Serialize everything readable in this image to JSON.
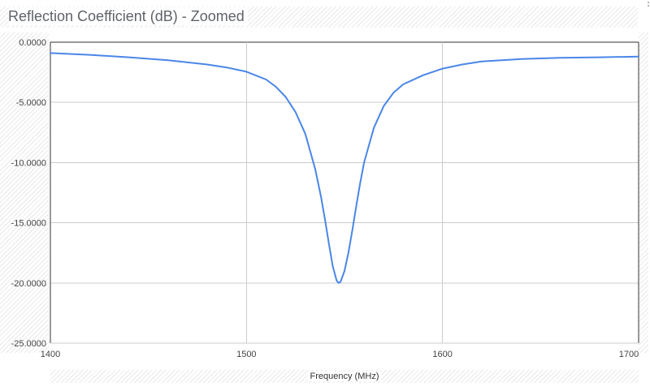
{
  "chart_data": {
    "type": "line",
    "title": "Reflection Coefficient (dB) - Zoomed",
    "xlabel": "Frequency (MHz)",
    "ylabel": "",
    "xlim": [
      1400,
      1700
    ],
    "ylim": [
      -25,
      0
    ],
    "x_ticks": [
      1400,
      1500,
      1600,
      1700
    ],
    "y_ticks": [
      0,
      -5,
      -10,
      -15,
      -20,
      -25
    ],
    "y_tick_labels": [
      "0.0000",
      "-5.0000",
      "-10.0000",
      "-15.0000",
      "-20.0000",
      "-25.0000"
    ],
    "grid": true,
    "legend": "none",
    "series": [
      {
        "color": "#4a86e8",
        "x": [
          1400,
          1420,
          1440,
          1460,
          1480,
          1490,
          1500,
          1510,
          1515,
          1520,
          1525,
          1530,
          1535,
          1538,
          1540,
          1542,
          1544,
          1546,
          1547,
          1548,
          1550,
          1552,
          1554,
          1556,
          1558,
          1560,
          1565,
          1570,
          1575,
          1580,
          1590,
          1600,
          1610,
          1620,
          1640,
          1660,
          1680,
          1700
        ],
        "y": [
          -0.9,
          -1.05,
          -1.25,
          -1.5,
          -1.85,
          -2.1,
          -2.45,
          -3.1,
          -3.7,
          -4.55,
          -5.8,
          -7.6,
          -10.5,
          -12.8,
          -14.7,
          -16.7,
          -18.6,
          -19.8,
          -20.0,
          -19.9,
          -19.0,
          -17.5,
          -15.6,
          -13.6,
          -11.7,
          -10.0,
          -7.1,
          -5.3,
          -4.2,
          -3.5,
          -2.75,
          -2.2,
          -1.85,
          -1.6,
          -1.4,
          -1.3,
          -1.25,
          -1.2
        ]
      }
    ]
  },
  "menu_icon": "more-vert-icon",
  "menu_glyph": "⋮"
}
